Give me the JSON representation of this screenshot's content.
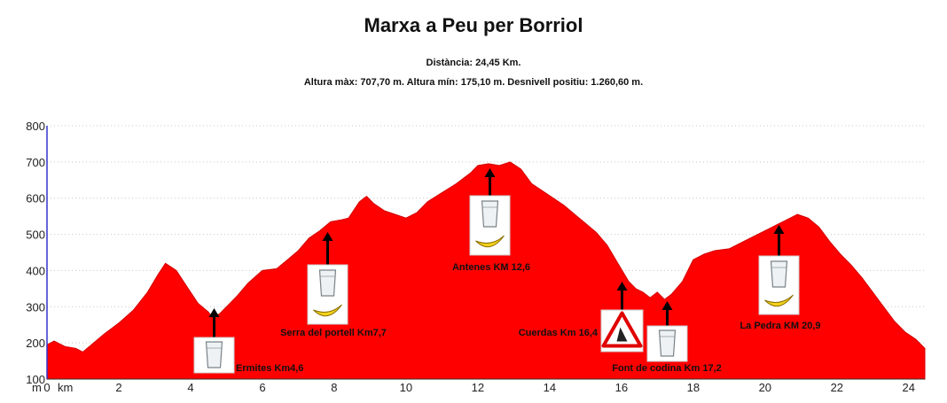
{
  "chart_data": {
    "type": "area",
    "title": "Marxa a Peu per Borriol",
    "subtitle_distance": "Distància: 24,45 Km.",
    "subtitle_stats": "Altura màx: 707,70 m. Altura mín: 175,10 m. Desnivell positiu: 1.260,60 m.",
    "xlabel": "km",
    "ylabel": "m",
    "xlim": [
      0,
      24.45
    ],
    "ylim": [
      100,
      800
    ],
    "x_ticks": [
      "0",
      "2",
      "4",
      "6",
      "8",
      "10",
      "12",
      "14",
      "16",
      "18",
      "20",
      "22",
      "24"
    ],
    "y_ticks": [
      "100",
      "200",
      "300",
      "400",
      "500",
      "600",
      "700",
      "800"
    ],
    "grid": true,
    "fill_color": "#ff0000",
    "series": [
      {
        "x": [
          0,
          0.2,
          0.5,
          0.8,
          1.0,
          1.3,
          1.6,
          2.0,
          2.4,
          2.8,
          3.1,
          3.3,
          3.6,
          3.9,
          4.2,
          4.5,
          4.6,
          4.8,
          5.0,
          5.3,
          5.6,
          6.0,
          6.4,
          6.7,
          7.0,
          7.3,
          7.6,
          7.9,
          8.2,
          8.4,
          8.7,
          8.9,
          9.1,
          9.4,
          9.7,
          10.0,
          10.3,
          10.6,
          11.0,
          11.4,
          11.8,
          12.0,
          12.3,
          12.6,
          12.9,
          13.2,
          13.5,
          13.8,
          14.1,
          14.4,
          14.7,
          15.0,
          15.3,
          15.6,
          15.9,
          16.2,
          16.4,
          16.6,
          16.8,
          17.0,
          17.2,
          17.4,
          17.7,
          18.0,
          18.3,
          18.6,
          19.0,
          19.4,
          19.8,
          20.1,
          20.4,
          20.7,
          20.9,
          21.2,
          21.5,
          21.8,
          22.1,
          22.4,
          22.7,
          23.0,
          23.3,
          23.6,
          23.9,
          24.2,
          24.45
        ],
        "y": [
          195,
          205,
          190,
          185,
          175,
          200,
          225,
          255,
          290,
          340,
          390,
          420,
          400,
          355,
          310,
          285,
          270,
          280,
          300,
          330,
          365,
          400,
          405,
          430,
          455,
          490,
          510,
          535,
          540,
          545,
          590,
          605,
          585,
          565,
          555,
          545,
          560,
          590,
          615,
          640,
          670,
          690,
          695,
          690,
          700,
          680,
          640,
          620,
          600,
          580,
          555,
          530,
          505,
          470,
          420,
          370,
          350,
          340,
          325,
          340,
          320,
          335,
          370,
          430,
          445,
          455,
          460,
          480,
          500,
          515,
          530,
          545,
          555,
          545,
          520,
          480,
          445,
          415,
          380,
          340,
          300,
          260,
          230,
          210,
          185
        ]
      }
    ],
    "annotations": [
      {
        "label": "Ermites Km4,6",
        "x": 4.6,
        "items": [
          "cup"
        ]
      },
      {
        "label": "Serra del portell Km7,7",
        "x": 7.7,
        "items": [
          "cup",
          "banana"
        ]
      },
      {
        "label": "Antenes KM 12,6",
        "x": 12.6,
        "items": [
          "cup",
          "banana"
        ]
      },
      {
        "label": "Cuerdas Km 16,4",
        "x": 16.4,
        "items": [
          "warning"
        ]
      },
      {
        "label": "Font de codina Km 17,2",
        "x": 17.2,
        "items": [
          "cup"
        ]
      },
      {
        "label": "La Pedra KM 20,9",
        "x": 20.9,
        "items": [
          "cup",
          "banana"
        ]
      }
    ]
  }
}
